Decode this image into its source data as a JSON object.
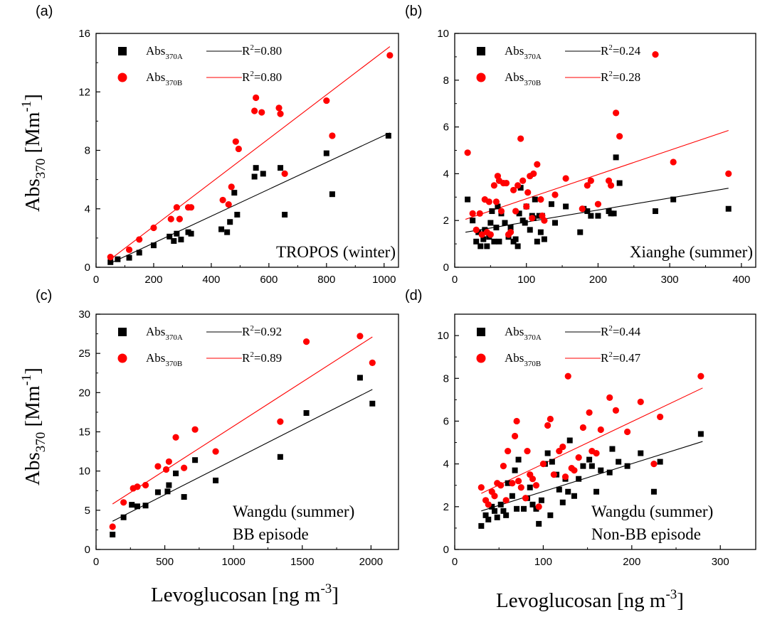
{
  "figure": {
    "y_axis_title": "Abs370 [Mm-1]",
    "x_axis_title": "Levoglucosan [ng m-3]"
  },
  "chart_data": [
    {
      "type": "scatter",
      "panel": "(a)",
      "annotation": [
        "TROPOS (winter)"
      ],
      "xlim": [
        0,
        1050
      ],
      "ylim": [
        0,
        16
      ],
      "xticks": [
        0,
        200,
        400,
        600,
        800,
        1000
      ],
      "yticks": [
        0,
        4,
        8,
        12,
        16
      ],
      "legend_position": "top-left",
      "grid": false,
      "series": [
        {
          "name": "Abs370A",
          "marker": "square",
          "color": "#000000",
          "r2": "R2=0.80",
          "fit": {
            "x": [
              50,
              1020
            ],
            "y": [
              0.28,
              9.2
            ]
          },
          "x": [
            50,
            75,
            115,
            150,
            200,
            255,
            270,
            280,
            295,
            320,
            330,
            435,
            455,
            465,
            480,
            490,
            550,
            555,
            580,
            640,
            655,
            800,
            820,
            1015
          ],
          "y": [
            0.35,
            0.55,
            0.65,
            1.0,
            1.5,
            2.1,
            1.8,
            2.3,
            1.9,
            2.4,
            2.3,
            2.6,
            2.4,
            3.1,
            5.1,
            3.6,
            6.2,
            6.8,
            6.4,
            6.8,
            3.6,
            7.8,
            5.0,
            9.0
          ]
        },
        {
          "name": "Abs370B",
          "marker": "circle",
          "color": "#ff0000",
          "r2": "R2=0.80",
          "fit": {
            "x": [
              50,
              1020
            ],
            "y": [
              0.55,
              15.1
            ]
          },
          "x": [
            50,
            115,
            150,
            200,
            260,
            280,
            290,
            320,
            330,
            440,
            460,
            470,
            485,
            495,
            550,
            555,
            575,
            635,
            640,
            655,
            800,
            820,
            1020
          ],
          "y": [
            0.7,
            1.2,
            1.9,
            2.7,
            3.3,
            4.1,
            3.3,
            4.1,
            4.1,
            4.6,
            4.3,
            5.5,
            8.6,
            8.1,
            10.7,
            11.6,
            10.6,
            10.9,
            10.5,
            6.4,
            11.4,
            9.0,
            14.5
          ]
        }
      ]
    },
    {
      "type": "scatter",
      "panel": "(b)",
      "annotation": [
        "Xianghe (summer)"
      ],
      "xlim": [
        0,
        420
      ],
      "ylim": [
        0,
        10
      ],
      "xticks": [
        0,
        100,
        200,
        300,
        400
      ],
      "yticks": [
        0,
        2,
        4,
        6,
        8,
        10
      ],
      "legend_position": "top-left",
      "grid": false,
      "series": [
        {
          "name": "Abs370A",
          "marker": "square",
          "color": "#000000",
          "r2": "R2=0.24",
          "fit": {
            "x": [
              15,
              382
            ],
            "y": [
              1.5,
              3.38
            ]
          },
          "x": [
            18,
            25,
            30,
            33,
            36,
            40,
            42,
            45,
            48,
            50,
            52,
            55,
            58,
            60,
            62,
            65,
            70,
            75,
            78,
            82,
            85,
            88,
            90,
            92,
            95,
            98,
            100,
            105,
            108,
            110,
            112,
            115,
            118,
            120,
            122,
            125,
            135,
            140,
            155,
            175,
            180,
            185,
            190,
            200,
            215,
            218,
            222,
            225,
            230,
            280,
            305,
            382
          ],
          "y": [
            2.9,
            2.0,
            1.1,
            1.5,
            0.9,
            1.2,
            1.6,
            0.9,
            1.3,
            1.9,
            2.4,
            1.1,
            1.7,
            2.6,
            1.1,
            2.3,
            1.9,
            1.3,
            1.7,
            1.1,
            1.2,
            0.9,
            2.3,
            3.4,
            2.0,
            1.9,
            2.6,
            1.6,
            2.2,
            2.1,
            2.9,
            1.1,
            2.2,
            1.5,
            2.2,
            1.2,
            2.7,
            1.9,
            2.6,
            1.5,
            2.5,
            2.4,
            2.2,
            2.2,
            2.4,
            2.3,
            2.3,
            4.7,
            3.6,
            2.4,
            2.9,
            2.5
          ]
        },
        {
          "name": "Abs370B",
          "marker": "circle",
          "color": "#ff0000",
          "r2": "R2=0.28",
          "fit": {
            "x": [
              15,
              382
            ],
            "y": [
              2.05,
              5.85
            ]
          },
          "x": [
            18,
            25,
            30,
            35,
            38,
            42,
            45,
            48,
            50,
            55,
            58,
            60,
            62,
            65,
            68,
            72,
            75,
            78,
            82,
            85,
            88,
            92,
            95,
            100,
            102,
            105,
            108,
            110,
            115,
            120,
            122,
            125,
            140,
            155,
            178,
            185,
            190,
            200,
            215,
            218,
            225,
            230,
            280,
            305,
            382
          ],
          "y": [
            4.9,
            2.3,
            1.6,
            2.3,
            1.4,
            2.9,
            1.5,
            2.8,
            1.4,
            3.5,
            2.8,
            3.9,
            3.7,
            2.4,
            3.6,
            3.6,
            1.4,
            1.5,
            3.3,
            2.4,
            3.5,
            5.5,
            3.7,
            2.6,
            3.2,
            3.9,
            2.1,
            4.0,
            4.4,
            2.9,
            2.2,
            2.0,
            3.1,
            3.8,
            2.5,
            3.5,
            3.7,
            2.7,
            3.7,
            3.5,
            6.6,
            5.6,
            9.1,
            4.5,
            4.0
          ]
        }
      ]
    },
    {
      "type": "scatter",
      "panel": "(c)",
      "annotation": [
        "Wangdu (summer)",
        "BB episode"
      ],
      "xlim": [
        0,
        2200
      ],
      "ylim": [
        0,
        30
      ],
      "xticks": [
        0,
        500,
        1000,
        1500,
        2000
      ],
      "yticks": [
        0,
        5,
        10,
        15,
        20,
        25,
        30
      ],
      "legend_position": "top-left",
      "grid": false,
      "series": [
        {
          "name": "Abs370A",
          "marker": "square",
          "color": "#000000",
          "r2": "R2=0.92",
          "fit": {
            "x": [
              120,
              2010
            ],
            "y": [
              3.6,
              20.4
            ]
          },
          "x": [
            120,
            200,
            260,
            300,
            360,
            450,
            520,
            530,
            580,
            640,
            720,
            870,
            1340,
            1530,
            1920,
            2010
          ],
          "y": [
            1.9,
            4.1,
            5.7,
            5.5,
            5.6,
            7.3,
            7.4,
            8.2,
            9.7,
            6.7,
            11.4,
            8.8,
            11.8,
            17.4,
            21.9,
            18.6
          ]
        },
        {
          "name": "Abs370B",
          "marker": "circle",
          "color": "#ff0000",
          "r2": "R2=0.89",
          "fit": {
            "x": [
              120,
              2010
            ],
            "y": [
              5.8,
              27.1
            ]
          },
          "x": [
            120,
            200,
            270,
            300,
            360,
            450,
            510,
            530,
            580,
            640,
            720,
            870,
            1340,
            1530,
            1920,
            2010
          ],
          "y": [
            2.9,
            6.0,
            7.8,
            8.0,
            8.2,
            10.6,
            10.2,
            11.2,
            14.3,
            10.4,
            15.3,
            12.5,
            16.3,
            26.5,
            27.2,
            23.8
          ]
        }
      ]
    },
    {
      "type": "scatter",
      "panel": "(d)",
      "annotation": [
        "Wangdu (summer)",
        "Non-BB episode"
      ],
      "xlim": [
        0,
        340
      ],
      "ylim": [
        0,
        11
      ],
      "xticks": [
        0,
        100,
        200,
        300
      ],
      "yticks": [
        0,
        2,
        4,
        6,
        8,
        10
      ],
      "legend_position": "top-left",
      "grid": false,
      "series": [
        {
          "name": "Abs370A",
          "marker": "square",
          "color": "#000000",
          "r2": "R2=0.44",
          "fit": {
            "x": [
              30,
              280
            ],
            "y": [
              1.8,
              5.05
            ]
          },
          "x": [
            30,
            35,
            38,
            42,
            45,
            48,
            52,
            55,
            58,
            60,
            65,
            68,
            70,
            72,
            78,
            82,
            85,
            88,
            92,
            95,
            98,
            102,
            105,
            108,
            110,
            115,
            118,
            122,
            125,
            128,
            130,
            135,
            140,
            145,
            152,
            155,
            160,
            165,
            175,
            178,
            185,
            195,
            210,
            225,
            232,
            278
          ],
          "y": [
            1.1,
            1.6,
            1.4,
            2.0,
            1.8,
            1.5,
            2.1,
            1.8,
            1.6,
            3.1,
            2.5,
            3.7,
            1.9,
            4.2,
            1.9,
            2.4,
            2.9,
            2.1,
            1.9,
            1.2,
            2.3,
            4.0,
            4.5,
            1.6,
            4.1,
            3.5,
            2.8,
            2.2,
            3.3,
            2.7,
            5.1,
            2.5,
            3.3,
            3.9,
            4.2,
            3.9,
            2.7,
            3.7,
            3.6,
            4.7,
            4.1,
            3.9,
            4.5,
            2.7,
            4.1,
            5.4
          ]
        },
        {
          "name": "Abs370B",
          "marker": "circle",
          "color": "#ff0000",
          "r2": "R2=0.47",
          "fit": {
            "x": [
              30,
              280
            ],
            "y": [
              2.62,
              7.55
            ]
          },
          "x": [
            30,
            35,
            38,
            42,
            45,
            48,
            52,
            55,
            58,
            60,
            65,
            68,
            70,
            72,
            75,
            80,
            82,
            85,
            88,
            92,
            95,
            100,
            105,
            108,
            112,
            118,
            122,
            125,
            128,
            132,
            135,
            140,
            145,
            152,
            155,
            160,
            165,
            175,
            182,
            195,
            210,
            225,
            232,
            278
          ],
          "y": [
            2.9,
            2.3,
            2.1,
            2.7,
            2.5,
            3.1,
            3.0,
            3.9,
            2.3,
            4.6,
            3.1,
            5.3,
            6.0,
            3.2,
            2.9,
            2.4,
            4.6,
            3.5,
            3.3,
            3.0,
            2.0,
            4.0,
            5.8,
            6.1,
            3.5,
            4.6,
            4.8,
            3.4,
            8.1,
            3.8,
            3.7,
            4.3,
            5.7,
            6.4,
            4.6,
            4.5,
            5.6,
            7.1,
            6.5,
            5.5,
            6.9,
            4.0,
            6.2,
            8.1
          ]
        }
      ]
    }
  ]
}
